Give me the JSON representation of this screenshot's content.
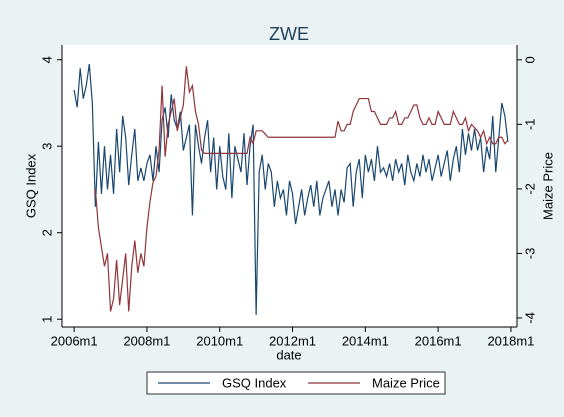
{
  "chart_data": {
    "type": "line",
    "title": "ZWE",
    "x_label": "date",
    "y_label": "GSQ Index",
    "y2_label": "Maize Price",
    "x": [
      552,
      553,
      554,
      555,
      556,
      557,
      558,
      559,
      560,
      561,
      562,
      563,
      564,
      565,
      566,
      567,
      568,
      569,
      570,
      571,
      572,
      573,
      574,
      575,
      576,
      577,
      578,
      579,
      580,
      581,
      582,
      583,
      584,
      585,
      586,
      587,
      588,
      589,
      590,
      591,
      592,
      593,
      594,
      595,
      596,
      597,
      598,
      599,
      600,
      601,
      602,
      603,
      604,
      605,
      606,
      607,
      608,
      609,
      610,
      611,
      612,
      613,
      614,
      615,
      616,
      617,
      618,
      619,
      620,
      621,
      622,
      623,
      624,
      625,
      626,
      627,
      628,
      629,
      630,
      631,
      632,
      633,
      634,
      635,
      636,
      637,
      638,
      639,
      640,
      641,
      642,
      643,
      644,
      645,
      646,
      647,
      648,
      649,
      650,
      651,
      652,
      653,
      654,
      655,
      656,
      657,
      658,
      659,
      660,
      661,
      662,
      663,
      664,
      665,
      666,
      667,
      668,
      669,
      670,
      671,
      672,
      673,
      674,
      675,
      676,
      677,
      678,
      679,
      680,
      681,
      682,
      683,
      684,
      685,
      686,
      687,
      688,
      689,
      690,
      691,
      692,
      693,
      694,
      695
    ],
    "xlim": [
      548,
      698
    ],
    "xticks": [
      {
        "value": 552,
        "label": "2006m1"
      },
      {
        "value": 576,
        "label": "2008m1"
      },
      {
        "value": 600,
        "label": "2010m1"
      },
      {
        "value": 624,
        "label": "2012m1"
      },
      {
        "value": 648,
        "label": "2014m1"
      },
      {
        "value": 672,
        "label": "2016m1"
      },
      {
        "value": 696,
        "label": "2018m1"
      }
    ],
    "ylim": [
      0.91,
      4.17
    ],
    "yticks": [
      1,
      2,
      3,
      4
    ],
    "y2lim": [
      -4.14,
      0.23
    ],
    "y2ticks": [
      -4,
      -3,
      -2,
      -1,
      0
    ],
    "grid": false,
    "series": [
      {
        "name": "GSQ Index",
        "color": "#1a476f",
        "axis": "y",
        "values": [
          3.65,
          3.45,
          3.9,
          3.55,
          3.7,
          3.95,
          3.5,
          2.3,
          3.05,
          2.45,
          3.0,
          2.5,
          2.9,
          2.45,
          3.2,
          2.7,
          3.35,
          3.1,
          2.55,
          2.9,
          3.2,
          2.6,
          2.75,
          2.6,
          2.8,
          2.9,
          2.6,
          3.0,
          2.7,
          3.3,
          3.45,
          3.1,
          3.6,
          3.3,
          3.2,
          3.4,
          2.95,
          3.1,
          3.25,
          2.2,
          3.25,
          3.0,
          2.8,
          3.1,
          3.3,
          2.7,
          3.1,
          2.5,
          3.0,
          2.65,
          2.5,
          3.15,
          2.4,
          3.0,
          2.85,
          2.7,
          3.15,
          2.55,
          3.0,
          3.25,
          1.05,
          2.7,
          2.9,
          2.5,
          2.8,
          2.7,
          2.3,
          2.6,
          2.4,
          2.5,
          2.2,
          2.6,
          2.45,
          2.1,
          2.3,
          2.5,
          2.2,
          2.4,
          2.55,
          2.3,
          2.6,
          2.2,
          2.4,
          2.5,
          2.6,
          2.3,
          2.5,
          2.2,
          2.5,
          2.35,
          2.75,
          2.8,
          2.3,
          2.7,
          2.85,
          2.4,
          2.9,
          2.7,
          2.85,
          2.6,
          3.0,
          2.7,
          2.75,
          2.65,
          2.8,
          2.6,
          2.85,
          2.7,
          2.8,
          2.55,
          2.9,
          2.7,
          2.6,
          2.8,
          2.65,
          2.9,
          2.7,
          2.85,
          2.6,
          2.75,
          2.9,
          2.65,
          2.8,
          2.95,
          2.6,
          2.85,
          3.0,
          2.7,
          3.2,
          2.9,
          3.15,
          2.95,
          3.2,
          2.95,
          3.1,
          2.7,
          3.0,
          2.85,
          3.35,
          2.7,
          3.1,
          3.5,
          3.35,
          3.05
        ]
      },
      {
        "name": "Maize Price",
        "color": "#90353b",
        "axis": "y2",
        "values": [
          null,
          null,
          null,
          null,
          null,
          null,
          null,
          -2.0,
          -2.6,
          -2.9,
          -3.2,
          -3.0,
          -3.9,
          -3.7,
          -3.1,
          -3.8,
          -3.4,
          -3.0,
          -3.9,
          -3.2,
          -2.8,
          -3.3,
          -3.0,
          -3.2,
          -2.6,
          -2.2,
          -1.9,
          -1.8,
          -1.4,
          -0.4,
          -1.5,
          -1.0,
          -0.8,
          -0.6,
          -1.1,
          -0.9,
          -0.7,
          -0.1,
          -0.5,
          -0.4,
          -0.8,
          -1.0,
          -1.4,
          -1.45,
          -1.45,
          -1.45,
          -1.45,
          -1.45,
          -1.45,
          -1.45,
          -1.45,
          -1.45,
          -1.45,
          -1.45,
          -1.45,
          -1.45,
          -1.45,
          -1.45,
          -1.2,
          -1.3,
          -1.1,
          -1.1,
          -1.1,
          -1.15,
          -1.2,
          -1.2,
          -1.2,
          -1.2,
          -1.2,
          -1.2,
          -1.2,
          -1.2,
          -1.2,
          -1.2,
          -1.2,
          -1.2,
          -1.2,
          -1.2,
          -1.2,
          -1.2,
          -1.2,
          -1.2,
          -1.2,
          -1.2,
          -1.2,
          -1.2,
          -1.2,
          -0.95,
          -1.1,
          -1.1,
          -1.0,
          -1.0,
          -0.8,
          -0.7,
          -0.6,
          -0.6,
          -0.6,
          -0.6,
          -0.8,
          -0.8,
          -0.9,
          -1.0,
          -1.0,
          -1.0,
          -0.9,
          -0.9,
          -0.8,
          -1.0,
          -1.0,
          -0.9,
          -0.9,
          -0.8,
          -0.7,
          -0.7,
          -0.9,
          -1.0,
          -1.0,
          -0.9,
          -1.0,
          -1.0,
          -0.8,
          -0.9,
          -1.0,
          -1.0,
          -1.0,
          -0.8,
          -0.9,
          -1.0,
          -1.0,
          -0.9,
          -1.1,
          -1.0,
          -1.05,
          -1.1,
          -1.2,
          -1.1,
          -1.3,
          -1.2,
          -1.3,
          -1.3,
          -1.2,
          -1.2,
          -1.3,
          -1.25
        ]
      }
    ]
  }
}
